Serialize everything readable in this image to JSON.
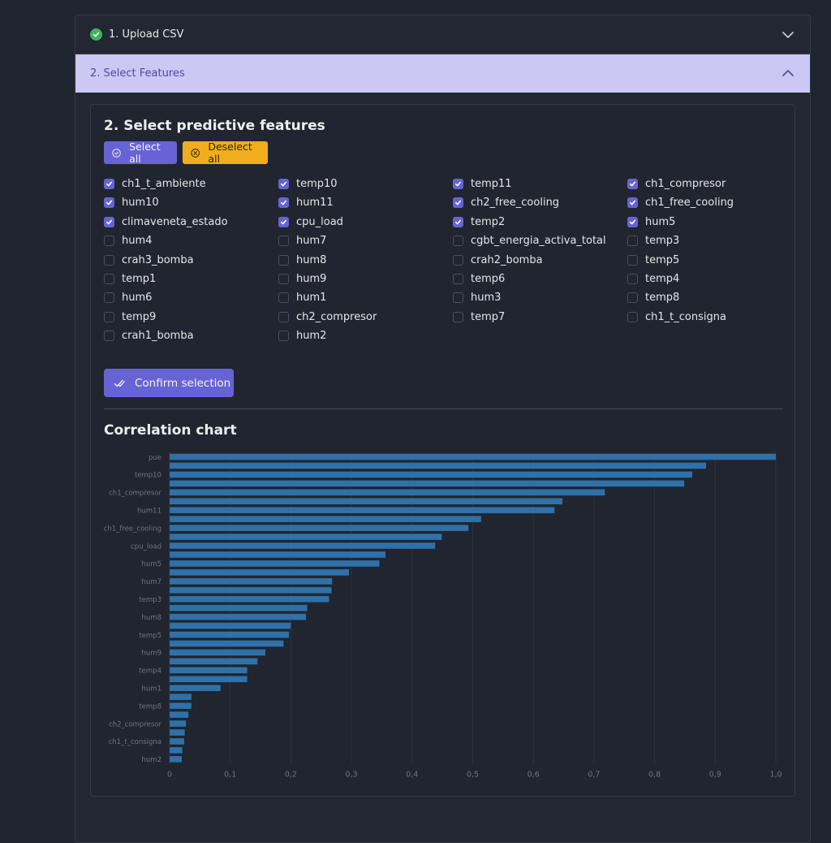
{
  "accordion": {
    "step1": {
      "title": "1. Upload CSV",
      "status_icon": "check-circle-icon"
    },
    "step2": {
      "title": "2. Select Features"
    }
  },
  "panel": {
    "heading": "2. Select predictive features",
    "select_all_label": "Select all",
    "deselect_all_label": "Deselect all",
    "confirm_label": "Confirm selection",
    "chart_heading": "Correlation chart"
  },
  "features": [
    {
      "label": "ch1_t_ambiente",
      "checked": true
    },
    {
      "label": "temp10",
      "checked": true
    },
    {
      "label": "temp11",
      "checked": true
    },
    {
      "label": "ch1_compresor",
      "checked": true
    },
    {
      "label": "hum10",
      "checked": true
    },
    {
      "label": "hum11",
      "checked": true
    },
    {
      "label": "ch2_free_cooling",
      "checked": true
    },
    {
      "label": "ch1_free_cooling",
      "checked": true
    },
    {
      "label": "climaveneta_estado",
      "checked": true
    },
    {
      "label": "cpu_load",
      "checked": true
    },
    {
      "label": "temp2",
      "checked": true
    },
    {
      "label": "hum5",
      "checked": true
    },
    {
      "label": "hum4",
      "checked": false
    },
    {
      "label": "hum7",
      "checked": false
    },
    {
      "label": "cgbt_energia_activa_total",
      "checked": false
    },
    {
      "label": "temp3",
      "checked": false
    },
    {
      "label": "crah3_bomba",
      "checked": false
    },
    {
      "label": "hum8",
      "checked": false
    },
    {
      "label": "crah2_bomba",
      "checked": false
    },
    {
      "label": "temp5",
      "checked": false
    },
    {
      "label": "temp1",
      "checked": false
    },
    {
      "label": "hum9",
      "checked": false
    },
    {
      "label": "temp6",
      "checked": false
    },
    {
      "label": "temp4",
      "checked": false
    },
    {
      "label": "hum6",
      "checked": false
    },
    {
      "label": "hum1",
      "checked": false
    },
    {
      "label": "hum3",
      "checked": false
    },
    {
      "label": "temp8",
      "checked": false
    },
    {
      "label": "temp9",
      "checked": false
    },
    {
      "label": "ch2_compresor",
      "checked": false
    },
    {
      "label": "temp7",
      "checked": false
    },
    {
      "label": "ch1_t_consigna",
      "checked": false
    },
    {
      "label": "crah1_bomba",
      "checked": false
    },
    {
      "label": "hum2",
      "checked": false
    }
  ],
  "colors": {
    "accent": "#6863d4",
    "warning": "#f1ad1e",
    "success": "#3fb45b",
    "bar": "#2f71a8",
    "active_header_bg": "#ccc7f3"
  },
  "chart_data": {
    "type": "bar",
    "orientation": "horizontal",
    "categories": [
      "pue",
      "",
      "temp10",
      "",
      "ch1_compresor",
      "",
      "hum11",
      "",
      "ch1_free_cooling",
      "",
      "cpu_load",
      "",
      "hum5",
      "",
      "hum7",
      "",
      "temp3",
      "",
      "hum8",
      "",
      "temp5",
      "",
      "hum9",
      "",
      "temp4",
      "",
      "hum1",
      "",
      "temp8",
      "",
      "ch2_compresor",
      "",
      "ch1_t_consigna",
      "",
      "hum2"
    ],
    "values": [
      1.0,
      0.885,
      0.862,
      0.849,
      0.718,
      0.648,
      0.635,
      0.514,
      0.493,
      0.449,
      0.438,
      0.356,
      0.346,
      0.296,
      0.268,
      0.267,
      0.263,
      0.227,
      0.225,
      0.2,
      0.197,
      0.188,
      0.158,
      0.145,
      0.128,
      0.128,
      0.084,
      0.036,
      0.036,
      0.031,
      0.027,
      0.025,
      0.024,
      0.021,
      0.02
    ],
    "xlim": [
      0,
      1
    ],
    "xticks": [
      "0",
      "0,1",
      "0,2",
      "0,3",
      "0,4",
      "0,5",
      "0,6",
      "0,7",
      "0,8",
      "0,9",
      "1,0"
    ],
    "grid": true,
    "title": "",
    "xlabel": "",
    "ylabel": ""
  }
}
